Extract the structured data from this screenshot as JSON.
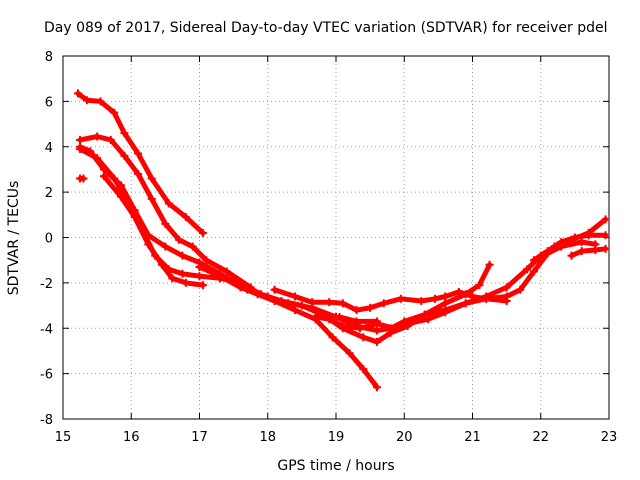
{
  "chart_data": {
    "type": "line",
    "title": "Day 089 of 2017, Sidereal Day-to-day VTEC variation (SDTVAR) for receiver pdel",
    "xlabel": "GPS time / hours",
    "ylabel": "SDTVAR / TECUs",
    "xlim": [
      15,
      23
    ],
    "ylim": [
      -8,
      8
    ],
    "xticks": [
      15,
      16,
      17,
      18,
      19,
      20,
      21,
      22,
      23
    ],
    "yticks": [
      -8,
      -6,
      -4,
      -2,
      0,
      2,
      4,
      6,
      8
    ],
    "grid": true,
    "color": "#ff0000",
    "series": [
      {
        "name": "s1",
        "points": [
          [
            15.22,
            6.35
          ],
          [
            15.35,
            6.05
          ],
          [
            15.55,
            6.0
          ],
          [
            15.75,
            5.5
          ],
          [
            15.9,
            4.6
          ],
          [
            16.1,
            3.7
          ],
          [
            16.3,
            2.6
          ],
          [
            16.55,
            1.5
          ],
          [
            16.8,
            0.9
          ],
          [
            17.05,
            0.2
          ]
        ]
      },
      {
        "name": "s2",
        "points": [
          [
            15.25,
            4.3
          ],
          [
            15.5,
            4.45
          ],
          [
            15.7,
            4.3
          ],
          [
            15.9,
            3.6
          ],
          [
            16.1,
            2.8
          ],
          [
            16.3,
            1.7
          ],
          [
            16.5,
            0.6
          ],
          [
            16.7,
            -0.1
          ],
          [
            16.9,
            -0.4
          ],
          [
            17.1,
            -1.0
          ],
          [
            17.4,
            -1.5
          ],
          [
            17.75,
            -2.2
          ]
        ]
      },
      {
        "name": "s3",
        "points": [
          [
            15.25,
            4.0
          ],
          [
            15.4,
            3.8
          ],
          [
            15.6,
            3.0
          ],
          [
            15.85,
            2.3
          ],
          [
            16.05,
            1.2
          ],
          [
            16.25,
            0.1
          ],
          [
            16.5,
            -0.4
          ],
          [
            16.75,
            -0.8
          ],
          [
            17.0,
            -1.1
          ],
          [
            17.3,
            -1.6
          ],
          [
            17.7,
            -2.3
          ],
          [
            18.0,
            -2.6
          ],
          [
            18.3,
            -2.9
          ],
          [
            18.65,
            -3.1
          ],
          [
            19.0,
            -3.5
          ],
          [
            19.3,
            -3.9
          ],
          [
            19.6,
            -4.1
          ],
          [
            19.8,
            -4.0
          ],
          [
            20.0,
            -3.7
          ],
          [
            20.3,
            -3.4
          ],
          [
            20.6,
            -3.2
          ],
          [
            20.9,
            -2.9
          ],
          [
            21.2,
            -2.7
          ],
          [
            21.5,
            -2.6
          ],
          [
            21.7,
            -2.3
          ],
          [
            21.9,
            -1.5
          ],
          [
            22.1,
            -0.7
          ],
          [
            22.3,
            -0.4
          ],
          [
            22.6,
            -0.2
          ],
          [
            22.8,
            -0.3
          ]
        ]
      },
      {
        "name": "s4",
        "points": [
          [
            15.25,
            3.9
          ],
          [
            15.5,
            3.5
          ],
          [
            15.75,
            2.6
          ],
          [
            15.95,
            1.6
          ],
          [
            16.15,
            0.4
          ],
          [
            16.35,
            -0.8
          ],
          [
            16.55,
            -1.4
          ],
          [
            16.75,
            -1.6
          ],
          [
            17.0,
            -1.7
          ],
          [
            17.3,
            -1.8
          ],
          [
            17.6,
            -2.0
          ],
          [
            17.9,
            -2.5
          ],
          [
            18.2,
            -2.8
          ],
          [
            18.5,
            -3.0
          ],
          [
            18.8,
            -3.4
          ],
          [
            19.1,
            -4.0
          ],
          [
            19.4,
            -4.4
          ],
          [
            19.6,
            -4.6
          ],
          [
            19.8,
            -4.2
          ],
          [
            20.05,
            -3.9
          ],
          [
            20.3,
            -3.4
          ],
          [
            20.6,
            -2.9
          ],
          [
            20.9,
            -2.5
          ],
          [
            21.1,
            -2.1
          ],
          [
            21.25,
            -1.2
          ]
        ]
      },
      {
        "name": "s5",
        "points": [
          [
            15.6,
            2.7
          ],
          [
            15.85,
            1.8
          ],
          [
            16.05,
            0.9
          ],
          [
            16.25,
            -0.3
          ],
          [
            16.45,
            -1.2
          ],
          [
            16.6,
            -1.8
          ],
          [
            16.8,
            -2.0
          ],
          [
            17.05,
            -2.1
          ]
        ]
      },
      {
        "name": "s6",
        "points": [
          [
            17.0,
            -1.3
          ],
          [
            17.3,
            -1.7
          ],
          [
            17.6,
            -2.2
          ],
          [
            17.85,
            -2.5
          ],
          [
            18.1,
            -2.8
          ],
          [
            18.4,
            -3.2
          ],
          [
            18.7,
            -3.6
          ],
          [
            18.95,
            -4.4
          ],
          [
            19.2,
            -5.1
          ],
          [
            19.4,
            -5.8
          ],
          [
            19.6,
            -6.6
          ]
        ]
      },
      {
        "name": "s7",
        "points": [
          [
            18.1,
            -2.3
          ],
          [
            18.4,
            -2.6
          ],
          [
            18.65,
            -2.85
          ],
          [
            18.9,
            -2.85
          ],
          [
            19.1,
            -2.9
          ],
          [
            19.3,
            -3.2
          ],
          [
            19.5,
            -3.1
          ],
          [
            19.7,
            -2.9
          ],
          [
            19.95,
            -2.7
          ],
          [
            20.25,
            -2.8
          ],
          [
            20.45,
            -2.7
          ],
          [
            20.6,
            -2.6
          ],
          [
            20.8,
            -2.4
          ],
          [
            21.0,
            -2.6
          ],
          [
            21.2,
            -2.7
          ],
          [
            21.5,
            -2.8
          ]
        ]
      },
      {
        "name": "s8",
        "points": [
          [
            18.7,
            -3.5
          ],
          [
            18.9,
            -3.6
          ],
          [
            19.1,
            -3.9
          ],
          [
            19.35,
            -4.0
          ],
          [
            19.6,
            -3.8
          ],
          [
            19.85,
            -4.0
          ],
          [
            20.05,
            -3.8
          ],
          [
            20.35,
            -3.6
          ],
          [
            20.6,
            -3.3
          ],
          [
            20.9,
            -2.9
          ],
          [
            21.2,
            -2.6
          ],
          [
            21.5,
            -2.2
          ],
          [
            21.8,
            -1.4
          ],
          [
            22.0,
            -0.8
          ],
          [
            22.2,
            -0.4
          ],
          [
            22.45,
            -0.1
          ],
          [
            22.7,
            0.2
          ],
          [
            22.95,
            0.8
          ]
        ]
      },
      {
        "name": "s9",
        "points": [
          [
            21.9,
            -1.0
          ],
          [
            22.1,
            -0.6
          ],
          [
            22.3,
            -0.2
          ],
          [
            22.5,
            0.0
          ],
          [
            22.7,
            0.1
          ],
          [
            22.95,
            0.1
          ]
        ]
      },
      {
        "name": "s10",
        "points": [
          [
            22.45,
            -0.8
          ],
          [
            22.6,
            -0.6
          ],
          [
            22.8,
            -0.55
          ],
          [
            22.95,
            -0.5
          ]
        ]
      },
      {
        "name": "s11",
        "points": [
          [
            19.05,
            -3.5
          ],
          [
            19.3,
            -3.7
          ],
          [
            19.6,
            -3.7
          ]
        ]
      },
      {
        "name": "s12",
        "points": [
          [
            15.25,
            2.6
          ],
          [
            15.3,
            2.6
          ]
        ]
      }
    ]
  }
}
